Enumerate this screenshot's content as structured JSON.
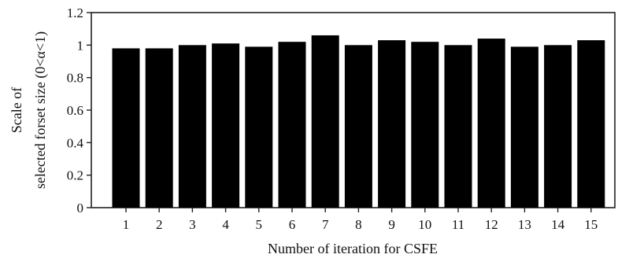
{
  "chart_data": {
    "type": "bar",
    "categories": [
      "1",
      "2",
      "3",
      "4",
      "5",
      "6",
      "7",
      "8",
      "9",
      "10",
      "11",
      "12",
      "13",
      "14",
      "15"
    ],
    "values": [
      0.98,
      0.98,
      1.0,
      1.01,
      0.99,
      1.02,
      1.06,
      1.0,
      1.03,
      1.02,
      1.0,
      1.04,
      0.99,
      1.0,
      1.03
    ],
    "xlabel": "Number of iteration for CSFE",
    "ylabel_lines": [
      "Scale of",
      "selected forset size (0<α<1)"
    ],
    "ylim": [
      0,
      1.2
    ],
    "yticks": [
      "0",
      "0.2",
      "0.4",
      "0.6",
      "0.8",
      "1",
      "1.2"
    ],
    "grid": false,
    "bar_color": "#000000"
  }
}
